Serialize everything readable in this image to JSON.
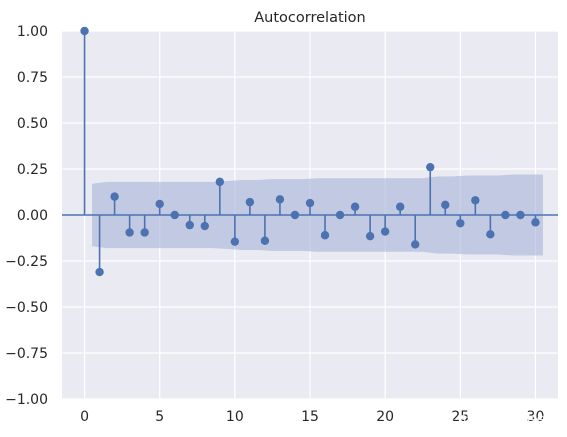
{
  "chart_data": {
    "type": "stem",
    "title": "Autocorrelation",
    "xlabel": "",
    "ylabel": "",
    "xlim": [
      -1.5,
      31.5
    ],
    "ylim": [
      -1.0,
      1.0
    ],
    "xticks": [
      0,
      5,
      10,
      15,
      20,
      25,
      30
    ],
    "yticks": [
      -1.0,
      -0.75,
      -0.5,
      -0.25,
      0.0,
      0.25,
      0.5,
      0.75,
      1.0
    ],
    "xtick_labels": [
      "0",
      "5",
      "10",
      "15",
      "20",
      "25",
      "30"
    ],
    "ytick_labels": [
      "−1.00",
      "−0.75",
      "−0.50",
      "−0.25",
      "0.00",
      "0.25",
      "0.50",
      "0.75",
      "1.00"
    ],
    "grid": true,
    "lags": [
      0,
      1,
      2,
      3,
      4,
      5,
      6,
      7,
      8,
      9,
      10,
      11,
      12,
      13,
      14,
      15,
      16,
      17,
      18,
      19,
      20,
      21,
      22,
      23,
      24,
      25,
      26,
      27,
      28,
      29,
      30
    ],
    "acf": [
      1.0,
      -0.31,
      0.1,
      -0.095,
      -0.095,
      0.06,
      0.0,
      -0.055,
      -0.06,
      0.18,
      -0.145,
      0.07,
      -0.14,
      0.085,
      0.0,
      0.065,
      -0.11,
      0.0,
      0.045,
      -0.115,
      -0.09,
      0.045,
      -0.16,
      0.26,
      0.055,
      -0.045,
      0.08,
      -0.105,
      0.0,
      0.0,
      -0.04
    ],
    "confidence_band": {
      "lags": [
        1,
        2,
        3,
        4,
        5,
        6,
        7,
        8,
        9,
        10,
        11,
        12,
        13,
        14,
        15,
        16,
        17,
        18,
        19,
        20,
        21,
        22,
        23,
        24,
        25,
        26,
        27,
        28,
        29,
        30
      ],
      "upper": [
        0.17,
        0.18,
        0.18,
        0.18,
        0.18,
        0.18,
        0.18,
        0.18,
        0.18,
        0.185,
        0.19,
        0.19,
        0.195,
        0.195,
        0.195,
        0.2,
        0.2,
        0.2,
        0.2,
        0.2,
        0.2,
        0.2,
        0.2,
        0.21,
        0.21,
        0.215,
        0.215,
        0.215,
        0.22,
        0.22
      ]
    },
    "colors": {
      "background": "#eaeaf2",
      "grid": "#ffffff",
      "stem": "#4c72b0",
      "band": "#a6b3d8",
      "band_opacity": "0.6"
    }
  },
  "watermark": "CSDN @宇易yy ee"
}
